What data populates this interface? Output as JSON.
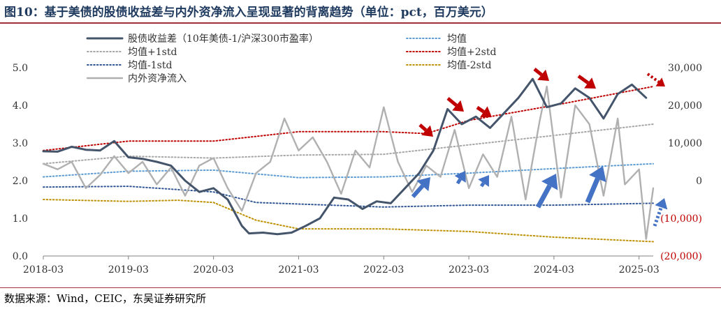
{
  "header": {
    "title": "图10：基于美债的股债收益差与内外资净流入呈现显著的背离趋势（单位：pct，百万美元）"
  },
  "footer": {
    "source": "数据来源：Wind，CEIC，东吴证券研究所"
  },
  "colors": {
    "spread": "#44546a",
    "mean": "#5b9bd5",
    "plus1": "#a6a6a6",
    "plus2": "#c00000",
    "minus1": "#2f5597",
    "minus2": "#bf9000",
    "flow": "#b0b0b0",
    "arrow_red": "#c00000",
    "arrow_blue": "#4472c4",
    "neg_labels": "#c00000"
  },
  "chart_data": {
    "type": "line",
    "title": "",
    "xlabel": "",
    "ylabel": "",
    "grid": false,
    "legend_position": "top",
    "x_range": [
      "2018-03",
      "2025-05"
    ],
    "x_ticks": [
      "2018-03",
      "2019-03",
      "2020-03",
      "2021-03",
      "2022-03",
      "2023-03",
      "2024-03",
      "2025-03"
    ],
    "y_left": {
      "ylim": [
        0,
        5
      ],
      "ticks": [
        "0.0",
        "1.0",
        "2.0",
        "3.0",
        "4.0",
        "5.0"
      ]
    },
    "y_right": {
      "ylim": [
        -20000,
        30000
      ],
      "ticks": [
        {
          "value": -20000,
          "label": "(20,000)",
          "negative": true
        },
        {
          "value": -10000,
          "label": "(10,000)",
          "negative": true
        },
        {
          "value": 0,
          "label": "0",
          "negative": false
        },
        {
          "value": 10000,
          "label": "10,000",
          "negative": false
        },
        {
          "value": 20000,
          "label": "20,000",
          "negative": false
        },
        {
          "value": 30000,
          "label": "30,000",
          "negative": false
        }
      ]
    },
    "series": [
      {
        "name": "股债收益差（10年美债-1/沪深300市盈率）",
        "axis": "left",
        "style": "solid-thick",
        "color_key": "spread",
        "points": [
          [
            "2018-03",
            2.78
          ],
          [
            "2018-05",
            2.77
          ],
          [
            "2018-07",
            2.9
          ],
          [
            "2018-09",
            2.82
          ],
          [
            "2018-11",
            2.8
          ],
          [
            "2019-01",
            3.05
          ],
          [
            "2019-03",
            2.62
          ],
          [
            "2019-05",
            2.58
          ],
          [
            "2019-07",
            2.5
          ],
          [
            "2019-09",
            2.4
          ],
          [
            "2019-11",
            2.0
          ],
          [
            "2020-01",
            1.7
          ],
          [
            "2020-03",
            1.8
          ],
          [
            "2020-05",
            1.5
          ],
          [
            "2020-07",
            0.8
          ],
          [
            "2020-08",
            0.6
          ],
          [
            "2020-10",
            0.62
          ],
          [
            "2020-12",
            0.58
          ],
          [
            "2021-02",
            0.62
          ],
          [
            "2021-04",
            0.8
          ],
          [
            "2021-06",
            1.0
          ],
          [
            "2021-08",
            1.55
          ],
          [
            "2021-10",
            1.5
          ],
          [
            "2021-12",
            1.25
          ],
          [
            "2022-02",
            1.45
          ],
          [
            "2022-04",
            1.4
          ],
          [
            "2022-06",
            1.8
          ],
          [
            "2022-08",
            2.2
          ],
          [
            "2022-10",
            2.8
          ],
          [
            "2022-12",
            3.9
          ],
          [
            "2023-02",
            3.5
          ],
          [
            "2023-04",
            3.7
          ],
          [
            "2023-06",
            3.4
          ],
          [
            "2023-08",
            3.8
          ],
          [
            "2023-10",
            4.2
          ],
          [
            "2023-12",
            4.7
          ],
          [
            "2024-02",
            3.95
          ],
          [
            "2024-04",
            4.05
          ],
          [
            "2024-06",
            4.45
          ],
          [
            "2024-08",
            4.2
          ],
          [
            "2024-10",
            3.65
          ],
          [
            "2024-12",
            4.3
          ],
          [
            "2025-02",
            4.55
          ],
          [
            "2025-04",
            4.2
          ]
        ]
      },
      {
        "name": "内外资净流入",
        "axis": "right",
        "style": "solid-medium",
        "color_key": "flow",
        "points": [
          [
            "2018-03",
            4500
          ],
          [
            "2018-05",
            3000
          ],
          [
            "2018-07",
            5000
          ],
          [
            "2018-09",
            -2000
          ],
          [
            "2018-11",
            1500
          ],
          [
            "2019-01",
            6500
          ],
          [
            "2019-03",
            2000
          ],
          [
            "2019-05",
            5000
          ],
          [
            "2019-07",
            -1000
          ],
          [
            "2019-09",
            3500
          ],
          [
            "2019-11",
            -4000
          ],
          [
            "2020-01",
            4000
          ],
          [
            "2020-03",
            6000
          ],
          [
            "2020-05",
            -2000
          ],
          [
            "2020-07",
            -8000
          ],
          [
            "2020-09",
            2000
          ],
          [
            "2020-11",
            5000
          ],
          [
            "2021-01",
            16500
          ],
          [
            "2021-03",
            8000
          ],
          [
            "2021-05",
            11500
          ],
          [
            "2021-07",
            5000
          ],
          [
            "2021-09",
            -3500
          ],
          [
            "2021-11",
            8000
          ],
          [
            "2022-01",
            3500
          ],
          [
            "2022-03",
            19500
          ],
          [
            "2022-05",
            5000
          ],
          [
            "2022-07",
            -3000
          ],
          [
            "2022-09",
            4000
          ],
          [
            "2022-11",
            1000
          ],
          [
            "2023-01",
            13500
          ],
          [
            "2023-03",
            -2000
          ],
          [
            "2023-05",
            7000
          ],
          [
            "2023-07",
            1000
          ],
          [
            "2023-09",
            17000
          ],
          [
            "2023-11",
            -5000
          ],
          [
            "2024-01",
            16000
          ],
          [
            "2024-02",
            25000
          ],
          [
            "2024-04",
            -4500
          ],
          [
            "2024-06",
            20000
          ],
          [
            "2024-08",
            15000
          ],
          [
            "2024-10",
            -4000
          ],
          [
            "2024-12",
            16500
          ],
          [
            "2025-01",
            -1000
          ],
          [
            "2025-03",
            3000
          ],
          [
            "2025-04",
            -15500
          ],
          [
            "2025-05",
            -2000
          ]
        ]
      },
      {
        "name": "均值",
        "axis": "left",
        "style": "dotted",
        "color_key": "mean",
        "points": [
          [
            "2018-03",
            2.1
          ],
          [
            "2019-03",
            2.25
          ],
          [
            "2020-03",
            2.28
          ],
          [
            "2021-03",
            2.08
          ],
          [
            "2022-03",
            2.1
          ],
          [
            "2023-03",
            2.2
          ],
          [
            "2024-03",
            2.32
          ],
          [
            "2025-05",
            2.45
          ]
        ]
      },
      {
        "name": "均值+1std",
        "axis": "left",
        "style": "dotted",
        "color_key": "plus1",
        "points": [
          [
            "2018-03",
            2.45
          ],
          [
            "2019-03",
            2.65
          ],
          [
            "2020-03",
            2.6
          ],
          [
            "2021-03",
            2.68
          ],
          [
            "2022-03",
            2.7
          ],
          [
            "2023-03",
            2.95
          ],
          [
            "2024-03",
            3.2
          ],
          [
            "2025-05",
            3.5
          ]
        ]
      },
      {
        "name": "均值+2std",
        "axis": "left",
        "style": "dotted",
        "color_key": "plus2",
        "points": [
          [
            "2018-03",
            2.8
          ],
          [
            "2019-03",
            3.05
          ],
          [
            "2020-03",
            3.05
          ],
          [
            "2021-03",
            3.3
          ],
          [
            "2022-03",
            3.3
          ],
          [
            "2022-09",
            3.25
          ],
          [
            "2023-03",
            3.6
          ],
          [
            "2024-03",
            4.0
          ],
          [
            "2025-05",
            4.5
          ]
        ]
      },
      {
        "name": "均值-1std",
        "axis": "left",
        "style": "dotted",
        "color_key": "minus1",
        "points": [
          [
            "2018-03",
            1.83
          ],
          [
            "2019-03",
            1.85
          ],
          [
            "2020-03",
            1.7
          ],
          [
            "2020-09",
            1.42
          ],
          [
            "2021-03",
            1.38
          ],
          [
            "2022-03",
            1.3
          ],
          [
            "2023-03",
            1.35
          ],
          [
            "2024-03",
            1.35
          ],
          [
            "2025-05",
            1.4
          ]
        ]
      },
      {
        "name": "均值-2std",
        "axis": "left",
        "style": "dotted",
        "color_key": "minus2",
        "points": [
          [
            "2018-03",
            1.5
          ],
          [
            "2019-03",
            1.45
          ],
          [
            "2019-10",
            1.48
          ],
          [
            "2020-03",
            1.42
          ],
          [
            "2020-09",
            0.95
          ],
          [
            "2021-03",
            0.72
          ],
          [
            "2022-03",
            0.72
          ],
          [
            "2023-03",
            0.65
          ],
          [
            "2024-03",
            0.5
          ],
          [
            "2025-05",
            0.38
          ]
        ]
      }
    ],
    "legend": {
      "columns": [
        [
          "股债收益差（10年美债-1/沪深300市盈率）",
          "均值+1std",
          "均值-1std",
          "内外资净流入"
        ],
        [
          "均值",
          "均值+2std",
          "均值-2std"
        ]
      ]
    }
  }
}
